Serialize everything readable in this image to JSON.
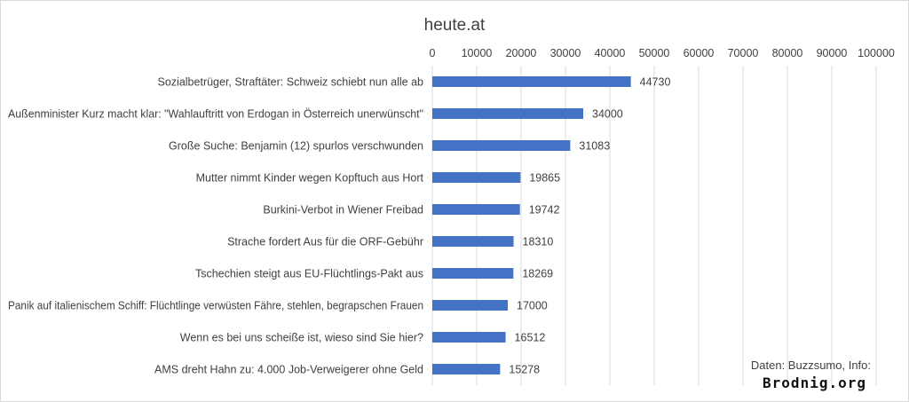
{
  "chart_data": {
    "type": "bar",
    "orientation": "horizontal",
    "title": "heute.at",
    "categories": [
      "Sozialbetrüger, Straftäter: Schweiz schiebt nun alle ab",
      "Außenminister Kurz macht klar: \"Wahlauftritt von Erdogan in Österreich unerwünscht\"",
      "Große Suche: Benjamin (12) spurlos verschwunden",
      "Mutter nimmt Kinder wegen Kopftuch aus Hort",
      "Burkini-Verbot in Wiener Freibad",
      "Strache fordert Aus für die ORF-Gebühr",
      "Tschechien steigt aus EU-Flüchtlings-Pakt aus",
      "Panik auf italienischem  Schiff: Flüchtlinge verwüsten Fähre, stehlen, begrapschen Frauen",
      "Wenn es bei uns scheiße ist, wieso sind Sie hier?",
      "AMS dreht Hahn zu: 4.000 Job-Verweigerer ohne Geld"
    ],
    "values": [
      44730,
      34000,
      31083,
      19865,
      19742,
      18310,
      18269,
      17000,
      16512,
      15278
    ],
    "xlim": [
      0,
      100000
    ],
    "xticks": [
      "0",
      "10000",
      "20000",
      "30000",
      "40000",
      "50000",
      "60000",
      "70000",
      "80000",
      "90000",
      "100000"
    ],
    "axis_position": "top",
    "grid": true,
    "bar_color": "#4472c4"
  },
  "credit": {
    "line1": "Daten: Buzzsumo, Info:",
    "line2": "Brodnig.org"
  }
}
